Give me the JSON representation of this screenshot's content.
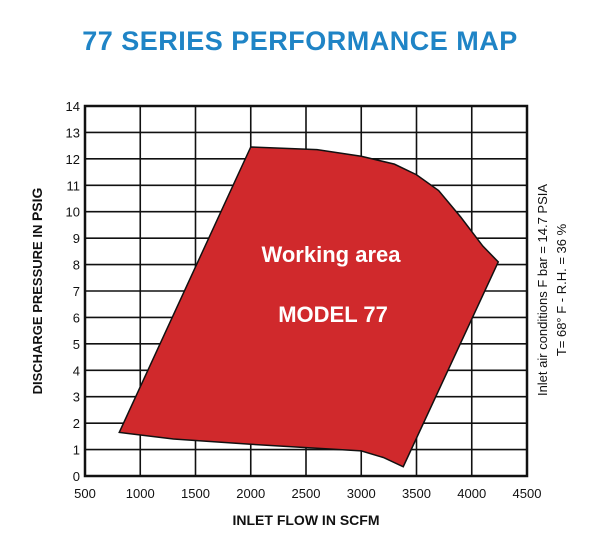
{
  "chart_data": {
    "type": "area",
    "title": "77 SERIES PERFORMANCE MAP",
    "xlabel": "INLET FLOW IN SCFM",
    "ylabel_prefix": "DISCHARGE PRESSURE IN ",
    "ylabel_unit": "PSIG",
    "xlim": [
      500,
      4500
    ],
    "ylim": [
      0,
      14
    ],
    "x_ticks": [
      500,
      1000,
      1500,
      2000,
      2500,
      3000,
      3500,
      4000,
      4500
    ],
    "y_ticks": [
      0,
      1,
      2,
      3,
      4,
      5,
      6,
      7,
      8,
      9,
      10,
      11,
      12,
      13,
      14
    ],
    "grid": true,
    "region": {
      "fill": "#d0292c",
      "label_line1": "Working area",
      "label_line2": "MODEL 77",
      "boundary": [
        {
          "x": 810,
          "y": 1.65
        },
        {
          "x": 1300,
          "y": 1.4
        },
        {
          "x": 2000,
          "y": 1.2
        },
        {
          "x": 2600,
          "y": 1.05
        },
        {
          "x": 3000,
          "y": 0.95
        },
        {
          "x": 3200,
          "y": 0.7
        },
        {
          "x": 3380,
          "y": 0.35
        },
        {
          "x": 4240,
          "y": 8.1
        },
        {
          "x": 4100,
          "y": 8.7
        },
        {
          "x": 3900,
          "y": 9.8
        },
        {
          "x": 3700,
          "y": 10.8
        },
        {
          "x": 3500,
          "y": 11.4
        },
        {
          "x": 3300,
          "y": 11.8
        },
        {
          "x": 3000,
          "y": 12.1
        },
        {
          "x": 2600,
          "y": 12.35
        },
        {
          "x": 2000,
          "y": 12.45
        }
      ]
    },
    "annotation_line1": "Inlet air conditions  F bar = 14.7 PSIA",
    "annotation_line2": "T= 68° F - R.H. = 36 %"
  }
}
